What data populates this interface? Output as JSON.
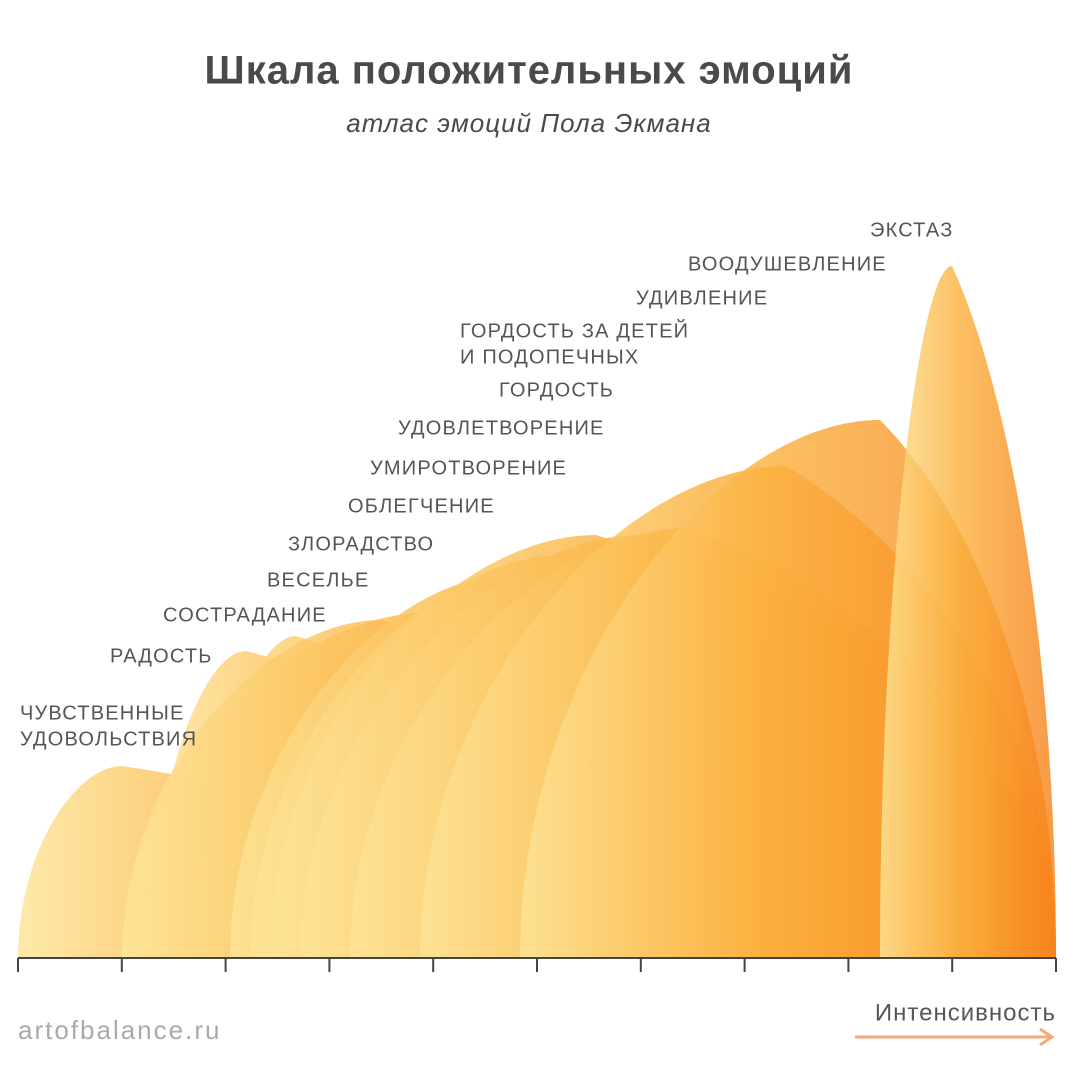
{
  "header": {
    "title": "Шкала положительных эмоций",
    "subtitle": "атлас эмоций Пола Экмана"
  },
  "emotions": [
    [
      "ЧУВСТВЕННЫЕ",
      "УДОВОЛЬСТВИЯ"
    ],
    [
      "РАДОСТЬ"
    ],
    [
      "СОСТРАДАНИЕ"
    ],
    [
      "ВЕСЕЛЬЕ"
    ],
    [
      "ЗЛОРАДСТВО"
    ],
    [
      "ОБЛЕГЧЕНИЕ"
    ],
    [
      "УМИРОТВОРЕНИЕ"
    ],
    [
      "УДОВЛЕТВОРЕНИЕ"
    ],
    [
      "ГОРДОСТЬ"
    ],
    [
      "ГОРДОСТЬ ЗА ДЕТЕЙ",
      "И ПОДОПЕЧНЫХ"
    ],
    [
      "УДИВЛЕНИЕ"
    ],
    [
      "ВООДУШЕВЛЕНИЕ"
    ],
    [
      "ЭКСТАЗ"
    ]
  ],
  "axis": {
    "label": "Интенсивность"
  },
  "footer": {
    "site": "artofbalance.ru"
  }
}
